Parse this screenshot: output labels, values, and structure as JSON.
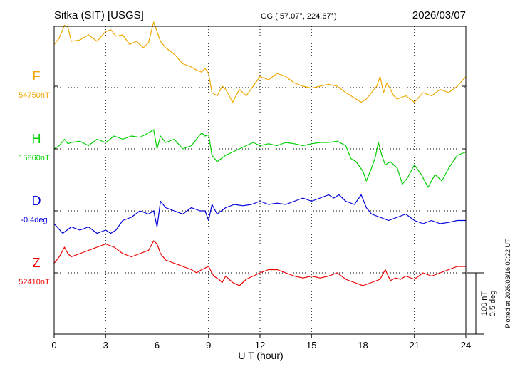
{
  "header": {
    "station": "Sitka (SIT)  [USGS]",
    "coords": "GG ( 57.07°, 224.67°)",
    "date": "2026/03/07"
  },
  "footer": {
    "plotted": "Plotted at 2026/03/16 00:22 UT"
  },
  "chart_data": {
    "type": "line",
    "xlabel": "U T (hour)",
    "xlim": [
      0,
      24
    ],
    "xticks": [
      0,
      3,
      6,
      9,
      12,
      15,
      18,
      21,
      24
    ],
    "grid": true,
    "scale_bar": {
      "line1": "100 nT",
      "line2": "0.5 deg"
    },
    "series": [
      {
        "name": "F",
        "baseline": "54750nT",
        "color": "#f0a800",
        "baseline_offset": 0,
        "x": [
          0,
          0.3,
          0.6,
          0.8,
          1.0,
          1.5,
          2.0,
          2.5,
          3.0,
          3.3,
          3.6,
          4.0,
          4.4,
          4.8,
          5.2,
          5.5,
          5.8,
          6.0,
          6.2,
          6.5,
          7.0,
          7.5,
          8.0,
          8.3,
          8.6,
          8.8,
          9.0,
          9.2,
          9.5,
          9.8,
          10.0,
          10.4,
          10.8,
          11.2,
          11.6,
          12.0,
          12.5,
          13.0,
          13.5,
          14.0,
          14.5,
          15.0,
          15.5,
          16.0,
          16.5,
          17.0,
          17.3,
          17.6,
          17.9,
          18.2,
          18.5,
          18.8,
          19.0,
          19.2,
          19.4,
          19.6,
          19.8,
          20.0,
          20.5,
          21.0,
          21.5,
          22.0,
          22.5,
          23.0,
          23.5,
          24.0
        ],
        "y": [
          65,
          75,
          95,
          92,
          70,
          72,
          80,
          70,
          85,
          88,
          78,
          80,
          65,
          70,
          60,
          68,
          100,
          85,
          70,
          60,
          50,
          35,
          30,
          25,
          22,
          28,
          20,
          -10,
          -15,
          0,
          -5,
          -25,
          -5,
          -15,
          0,
          15,
          10,
          20,
          15,
          5,
          0,
          -3,
          0,
          3,
          0,
          -10,
          -15,
          -20,
          -25,
          -20,
          -10,
          0,
          15,
          -10,
          5,
          -5,
          -15,
          -20,
          -15,
          -25,
          -10,
          -15,
          -5,
          -10,
          0,
          15
        ]
      },
      {
        "name": "H",
        "baseline": "15860nT",
        "color": "#00d000",
        "baseline_offset": 0,
        "x": [
          0,
          0.3,
          0.6,
          0.8,
          1.0,
          1.5,
          2.0,
          2.5,
          3.0,
          3.5,
          4.0,
          4.5,
          5.0,
          5.5,
          5.8,
          6.0,
          6.2,
          6.5,
          7.0,
          7.5,
          8.0,
          8.3,
          8.6,
          8.8,
          9.0,
          9.2,
          9.5,
          10.0,
          10.4,
          10.8,
          11.2,
          11.6,
          12.0,
          12.5,
          13.0,
          13.5,
          14.0,
          14.5,
          15.0,
          15.5,
          16.0,
          16.5,
          17.0,
          17.3,
          17.6,
          18.0,
          18.2,
          18.5,
          18.7,
          18.9,
          19.1,
          19.3,
          19.6,
          20.0,
          20.3,
          20.6,
          21.0,
          21.4,
          21.8,
          22.2,
          22.6,
          23.0,
          23.5,
          24.0
        ],
        "y": [
          0,
          5,
          15,
          8,
          10,
          12,
          5,
          15,
          10,
          20,
          15,
          20,
          18,
          25,
          30,
          0,
          20,
          10,
          15,
          0,
          5,
          15,
          25,
          20,
          22,
          -10,
          -20,
          -10,
          -5,
          0,
          5,
          10,
          5,
          8,
          5,
          10,
          8,
          5,
          8,
          10,
          10,
          12,
          5,
          -15,
          -20,
          -35,
          -50,
          -30,
          -15,
          10,
          -10,
          -25,
          -20,
          -30,
          -55,
          -45,
          -25,
          -40,
          -60,
          -40,
          -50,
          -30,
          -10,
          -5
        ]
      },
      {
        "name": "D",
        "baseline": "-0.4deg",
        "color": "#0000dd",
        "baseline_offset": 0,
        "x": [
          0,
          0.5,
          1.0,
          1.5,
          2.0,
          2.5,
          3.0,
          3.3,
          3.6,
          4.0,
          4.5,
          5.0,
          5.5,
          5.8,
          6.0,
          6.2,
          6.5,
          7.0,
          7.5,
          8.0,
          8.5,
          8.8,
          9.0,
          9.2,
          9.5,
          10.0,
          10.5,
          11.0,
          11.5,
          12.0,
          12.5,
          13.0,
          13.5,
          14.0,
          14.5,
          15.0,
          15.5,
          16.0,
          16.3,
          16.6,
          17.0,
          17.5,
          17.9,
          18.2,
          18.5,
          19.0,
          19.5,
          20.0,
          20.5,
          21.0,
          21.5,
          22.0,
          22.5,
          23.0,
          23.5,
          24.0
        ],
        "y": [
          -20,
          -35,
          -25,
          -30,
          -25,
          -35,
          -30,
          -35,
          -30,
          -15,
          -10,
          0,
          -5,
          0,
          -25,
          15,
          5,
          0,
          -5,
          5,
          0,
          0,
          -15,
          10,
          -5,
          5,
          10,
          8,
          10,
          15,
          10,
          12,
          10,
          15,
          20,
          15,
          20,
          25,
          20,
          25,
          15,
          10,
          25,
          5,
          -5,
          -10,
          -15,
          -10,
          -5,
          -15,
          -20,
          -15,
          -20,
          -18,
          -15,
          -15
        ]
      },
      {
        "name": "Z",
        "baseline": "52410nT",
        "color": "#ee0000",
        "baseline_offset": 0,
        "x": [
          0,
          0.3,
          0.6,
          0.8,
          1.0,
          1.5,
          2.0,
          2.5,
          3.0,
          3.5,
          4.0,
          4.5,
          5.0,
          5.5,
          5.8,
          6.0,
          6.2,
          6.5,
          7.0,
          7.5,
          8.0,
          8.3,
          8.6,
          9.0,
          9.3,
          9.6,
          9.8,
          10.0,
          10.4,
          10.8,
          11.2,
          11.6,
          12.0,
          12.5,
          13.0,
          13.5,
          14.0,
          14.5,
          15.0,
          15.5,
          16.0,
          16.5,
          17.0,
          17.5,
          18.0,
          18.5,
          19.0,
          19.3,
          19.6,
          19.9,
          20.2,
          20.5,
          21.0,
          21.5,
          22.0,
          22.5,
          23.0,
          23.5,
          24.0
        ],
        "y": [
          15,
          25,
          40,
          30,
          25,
          30,
          35,
          40,
          45,
          40,
          30,
          25,
          30,
          35,
          50,
          45,
          30,
          20,
          15,
          10,
          5,
          0,
          5,
          10,
          -5,
          -10,
          -15,
          -5,
          -15,
          -20,
          -10,
          -5,
          0,
          5,
          5,
          0,
          -5,
          -8,
          -5,
          -8,
          -5,
          0,
          -10,
          -15,
          -20,
          -15,
          -10,
          5,
          -12,
          -8,
          -10,
          -5,
          -10,
          0,
          -5,
          0,
          5,
          10,
          10
        ]
      }
    ]
  }
}
